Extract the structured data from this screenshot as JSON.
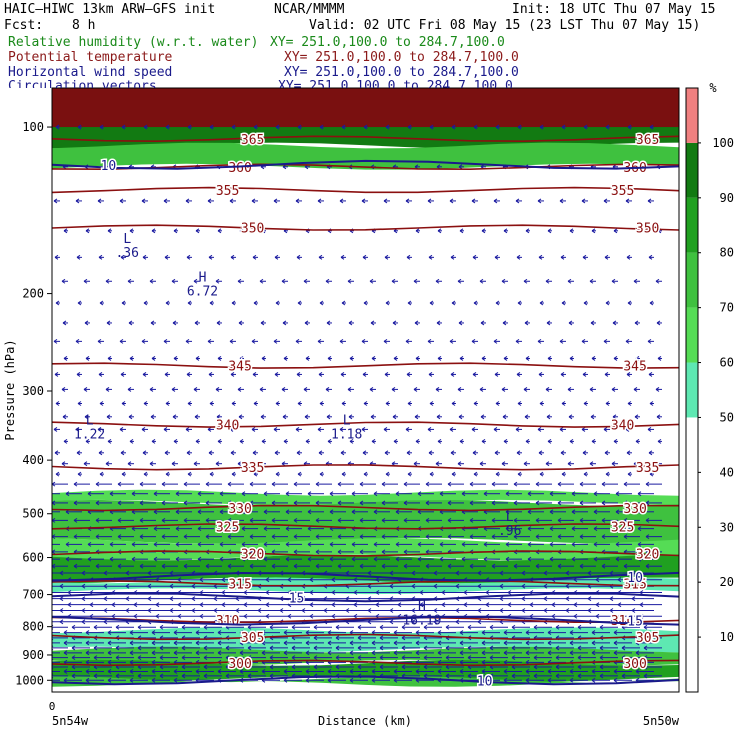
{
  "header": {
    "model": "HAIC—HIWC 13km ARW—GFS init",
    "org": "NCAR/MMMM",
    "init": "Init: 18 UTC Thu 07 May 15",
    "fcst_label": "Fcst:",
    "fcst_value": "8 h",
    "valid": "Valid: 02 UTC Fri 08 May 15 (23 LST Thu 07 May 15)",
    "fields": [
      {
        "name": "Relative humidity (w.r.t. water)",
        "xy": "XY= 251.0,100.0 to 284.7,100.0",
        "color": "#1a8a1a"
      },
      {
        "name": "Potential temperature",
        "xy": "XY= 251.0,100.0 to 284.7,100.0",
        "color": "#8b1a1a"
      },
      {
        "name": "Horizontal wind speed",
        "xy": "XY= 251.0,100.0 to 284.7,100.0",
        "color": "#1a1a8b"
      },
      {
        "name": "Circulation vectors",
        "xy": "XY= 251.0,100.0 to 284.7,100.0",
        "color": "#1a1a8b"
      }
    ]
  },
  "chart_data": {
    "type": "heatmap",
    "title": "Cross section: relative humidity (shaded), potential temperature (contours), horizontal wind speed (contours), circulation vectors",
    "xlabel": "Distance (km)",
    "ylabel": "Pressure (hPa)",
    "x_start_label": "5n54w",
    "x_end_label": "5n50w",
    "x_origin_tick": "0",
    "yticks": [
      100,
      200,
      300,
      400,
      500,
      600,
      700,
      800,
      900,
      1000
    ],
    "y_scale": "log-pressure",
    "ylim": [
      1050,
      85
    ],
    "colorbar": {
      "unit": "%",
      "ticks": [
        10,
        20,
        30,
        40,
        50,
        60,
        70,
        80,
        90,
        100
      ],
      "bins": [
        {
          "from": 50,
          "to": 60,
          "color": "#5ee8b2"
        },
        {
          "from": 60,
          "to": 70,
          "color": "#55dc55"
        },
        {
          "from": 70,
          "to": 80,
          "color": "#3fc13f"
        },
        {
          "from": 80,
          "to": 90,
          "color": "#20a020"
        },
        {
          "from": 90,
          "to": 100,
          "color": "#127a12"
        },
        {
          "from": 100,
          "to": 110,
          "color": "#f08080"
        }
      ]
    },
    "rh_layers": [
      {
        "p_top": 85,
        "p_bottom": 98,
        "rh": 100
      },
      {
        "p_top": 98,
        "p_bottom": 108,
        "rh": 95
      },
      {
        "p_top": 108,
        "p_bottom": 118,
        "rh": 75
      },
      {
        "p_top": 458,
        "p_bottom": 478,
        "rh": 65
      },
      {
        "p_top": 478,
        "p_bottom": 560,
        "rh": 75
      },
      {
        "p_top": 560,
        "p_bottom": 600,
        "rh": 60
      },
      {
        "p_top": 600,
        "p_bottom": 660,
        "rh": 80
      },
      {
        "p_top": 660,
        "p_bottom": 690,
        "rh": 55
      },
      {
        "p_top": 812,
        "p_bottom": 880,
        "rh": 55
      },
      {
        "p_top": 880,
        "p_bottom": 930,
        "rh": 70
      },
      {
        "p_top": 930,
        "p_bottom": 995,
        "rh": 88
      },
      {
        "p_top": 995,
        "p_bottom": 1015,
        "rh": 75
      }
    ],
    "theta_contours": [
      {
        "label": "365",
        "p": 105
      },
      {
        "label": "360",
        "p": 118
      },
      {
        "label": "355",
        "p": 130
      },
      {
        "label": "350",
        "p": 152
      },
      {
        "label": "345",
        "p": 270
      },
      {
        "label": "340",
        "p": 345
      },
      {
        "label": "335",
        "p": 412
      },
      {
        "label": "330",
        "p": 488
      },
      {
        "label": "325",
        "p": 527
      },
      {
        "label": "320",
        "p": 590
      },
      {
        "label": "315",
        "p": 668
      },
      {
        "label": "310",
        "p": 778
      },
      {
        "label": "305",
        "p": 835
      },
      {
        "label": "300",
        "p": 930
      }
    ],
    "wind_contours": [
      {
        "label": "10",
        "p": 117
      },
      {
        "label": "10",
        "p": 650
      },
      {
        "label": "15",
        "p": 708
      },
      {
        "label": "15",
        "p": 780
      },
      {
        "label": "10",
        "p": 1000
      }
    ],
    "extrema": [
      {
        "type": "L",
        "value": ".36",
        "x_frac": 0.12,
        "p": 162
      },
      {
        "type": "H",
        "value": "6.72",
        "x_frac": 0.24,
        "p": 190
      },
      {
        "type": "L",
        "value": "1.22",
        "x_frac": 0.06,
        "p": 345
      },
      {
        "type": "L",
        "value": "1.18",
        "x_frac": 0.47,
        "p": 345
      },
      {
        "type": "L",
        "value": ".96",
        "x_frac": 0.73,
        "p": 515
      },
      {
        "type": "H",
        "value": "16.19",
        "x_frac": 0.59,
        "p": 748
      }
    ]
  }
}
